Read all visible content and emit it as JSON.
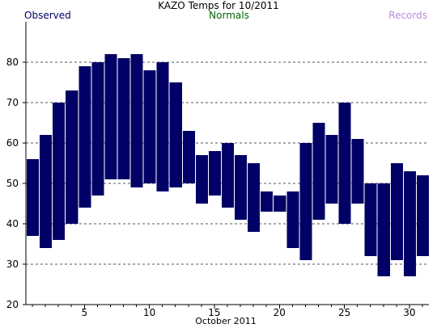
{
  "chart_data": {
    "type": "bar",
    "title": "KAZO Temps for  10/2011",
    "xlabel": "October 2011",
    "ylabel": "",
    "legend": [
      {
        "name": "Observed",
        "color": "#000066"
      },
      {
        "name": "Normals",
        "color": "#006600"
      },
      {
        "name": "Records",
        "color": "#b48cdc"
      }
    ],
    "xlim": [
      0.5,
      31.5
    ],
    "ylim": [
      20,
      90
    ],
    "x_ticks": [
      5,
      10,
      15,
      20,
      25,
      30
    ],
    "y_ticks": [
      20,
      30,
      40,
      50,
      60,
      70,
      80
    ],
    "grid_y": [
      30,
      40,
      50,
      60,
      70,
      80
    ],
    "grid": "horizontal dashed",
    "legend_placement": "top",
    "bar_color": "#000066",
    "series": [
      {
        "name": "Observed",
        "x": [
          1,
          2,
          3,
          4,
          5,
          6,
          7,
          8,
          9,
          10,
          11,
          12,
          13,
          14,
          15,
          16,
          17,
          18,
          19,
          20,
          21,
          22,
          23,
          24,
          25,
          26,
          27,
          28,
          29,
          30,
          31
        ],
        "high": [
          56,
          62,
          70,
          73,
          79,
          80,
          82,
          81,
          82,
          78,
          80,
          75,
          63,
          57,
          58,
          60,
          57,
          55,
          48,
          47,
          48,
          60,
          65,
          62,
          70,
          61,
          50,
          50,
          55,
          53,
          52
        ],
        "low": [
          37,
          34,
          36,
          40,
          44,
          47,
          51,
          51,
          49,
          50,
          48,
          49,
          50,
          45,
          47,
          44,
          41,
          38,
          43,
          43,
          34,
          31,
          41,
          45,
          40,
          45,
          32,
          27,
          31,
          27,
          32
        ]
      }
    ]
  }
}
